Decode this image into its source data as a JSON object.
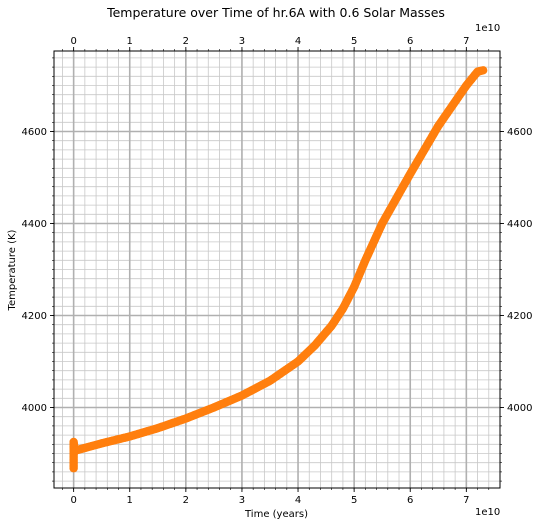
{
  "chart_data": {
    "type": "scatter",
    "title": "Temperature over Time of hr.6A with 0.6 Solar Masses",
    "xlabel": "Time (years)",
    "ylabel": "Temperature (K)",
    "x_offset_label": "1e10",
    "xlim": [
      -0.35,
      7.6
    ],
    "ylim": [
      3825,
      4775
    ],
    "x_major_ticks": [
      0,
      1,
      2,
      3,
      4,
      5,
      6,
      7
    ],
    "y_major_ticks": [
      4000,
      4200,
      4400,
      4600
    ],
    "x_minor_step": 0.2,
    "y_minor_step": 20,
    "grid": true,
    "ticks_mirrored": "top and right",
    "series": [
      {
        "color": "#ff7f0e",
        "x": [
          0,
          0,
          0,
          0.02,
          0.05,
          0.2,
          0.5,
          1.0,
          1.5,
          2.0,
          2.5,
          3.0,
          3.5,
          4.0,
          4.3,
          4.6,
          4.8,
          5.0,
          5.2,
          5.5,
          6.0,
          6.5,
          7.0,
          7.2,
          7.3
        ],
        "y": [
          3868,
          3910,
          3925,
          3905,
          3907,
          3912,
          3922,
          3937,
          3955,
          3976,
          4000,
          4026,
          4058,
          4100,
          4135,
          4178,
          4215,
          4262,
          4320,
          4400,
          4508,
          4612,
          4700,
          4730,
          4733
        ]
      }
    ]
  }
}
